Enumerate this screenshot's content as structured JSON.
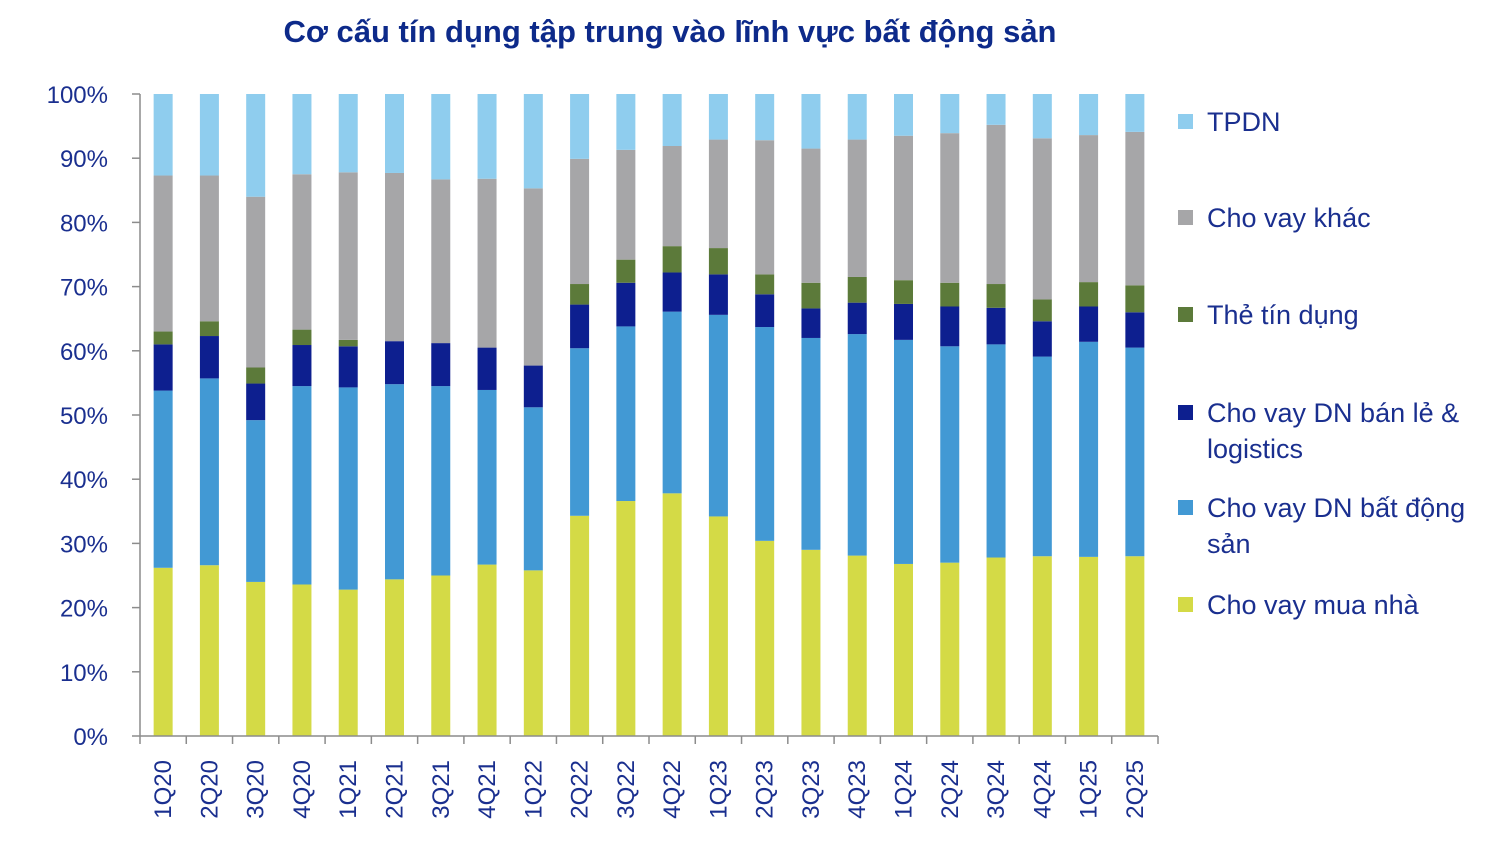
{
  "title": "Cơ cấu tín dụng tập trung vào lĩnh vực bất động sản",
  "chart_data": {
    "type": "bar",
    "stacked": true,
    "percent": true,
    "title": "Cơ cấu tín dụng tập trung vào lĩnh vực bất động sản",
    "categories": [
      "1Q20",
      "2Q20",
      "3Q20",
      "4Q20",
      "1Q21",
      "2Q21",
      "3Q21",
      "4Q21",
      "1Q22",
      "2Q22",
      "3Q22",
      "4Q22",
      "1Q23",
      "2Q23",
      "3Q23",
      "4Q23",
      "1Q24",
      "2Q24",
      "3Q24",
      "4Q24",
      "1Q25",
      "2Q25"
    ],
    "ylim": [
      0,
      100
    ],
    "yticks": [
      "0%",
      "10%",
      "20%",
      "30%",
      "40%",
      "50%",
      "60%",
      "70%",
      "80%",
      "90%",
      "100%"
    ],
    "legend_position": "right",
    "grid": false,
    "series": [
      {
        "name": "Cho vay mua nhà",
        "color": "#d4da46",
        "values": [
          26.2,
          26.6,
          24.0,
          23.6,
          22.8,
          24.4,
          25.0,
          26.7,
          25.8,
          34.3,
          36.6,
          37.8,
          34.2,
          30.4,
          29.0,
          28.1,
          26.8,
          27.0,
          27.8,
          28.0,
          27.9,
          28.0
        ]
      },
      {
        "name": "Cho vay DN bất động sản",
        "color": "#4299d4",
        "values": [
          27.6,
          29.1,
          25.2,
          30.9,
          31.5,
          30.4,
          29.5,
          27.2,
          25.4,
          26.1,
          27.2,
          28.3,
          31.4,
          33.3,
          33.0,
          34.5,
          34.9,
          33.7,
          33.2,
          31.1,
          33.5,
          32.5
        ]
      },
      {
        "name": "Cho vay DN bán lẻ & logistics",
        "color": "#0d1f8f",
        "values": [
          7.2,
          6.6,
          5.7,
          6.4,
          6.4,
          6.7,
          6.7,
          6.6,
          6.5,
          6.8,
          6.8,
          6.1,
          6.3,
          5.1,
          4.6,
          4.9,
          5.6,
          6.2,
          5.7,
          5.5,
          5.5,
          5.5
        ]
      },
      {
        "name": "Thẻ tín dụng",
        "color": "#5c7a3a",
        "values": [
          2.0,
          2.3,
          2.5,
          2.4,
          1.0,
          0.0,
          0.0,
          0.0,
          0.0,
          3.2,
          3.6,
          4.1,
          4.1,
          3.1,
          4.0,
          4.0,
          3.7,
          3.7,
          3.7,
          3.4,
          3.8,
          4.2
        ]
      },
      {
        "name": "Cho vay khác",
        "color": "#a6a6a8",
        "values": [
          24.3,
          22.7,
          26.6,
          24.2,
          26.1,
          26.2,
          25.5,
          26.3,
          27.6,
          19.5,
          17.1,
          15.6,
          16.9,
          20.9,
          20.9,
          21.4,
          22.5,
          23.3,
          24.8,
          25.1,
          22.9,
          23.9
        ]
      },
      {
        "name": "TPDN",
        "color": "#8fcdee",
        "values": [
          12.7,
          12.7,
          16.0,
          12.5,
          12.2,
          12.3,
          13.3,
          13.2,
          14.7,
          10.1,
          8.7,
          8.1,
          7.1,
          7.2,
          8.5,
          7.1,
          6.5,
          6.1,
          4.8,
          6.9,
          6.4,
          5.9
        ]
      }
    ]
  },
  "legend": [
    {
      "label": "TPDN",
      "color": "#8fcdee"
    },
    {
      "label": "Cho vay khác",
      "color": "#a6a6a8"
    },
    {
      "label": "Thẻ tín dụng",
      "color": "#5c7a3a"
    },
    {
      "label": "Cho vay DN bán lẻ & logistics",
      "color": "#0d1f8f"
    },
    {
      "label": "Cho vay DN bất động sản",
      "color": "#4299d4"
    },
    {
      "label": "Cho vay mua nhà",
      "color": "#d4da46"
    }
  ]
}
